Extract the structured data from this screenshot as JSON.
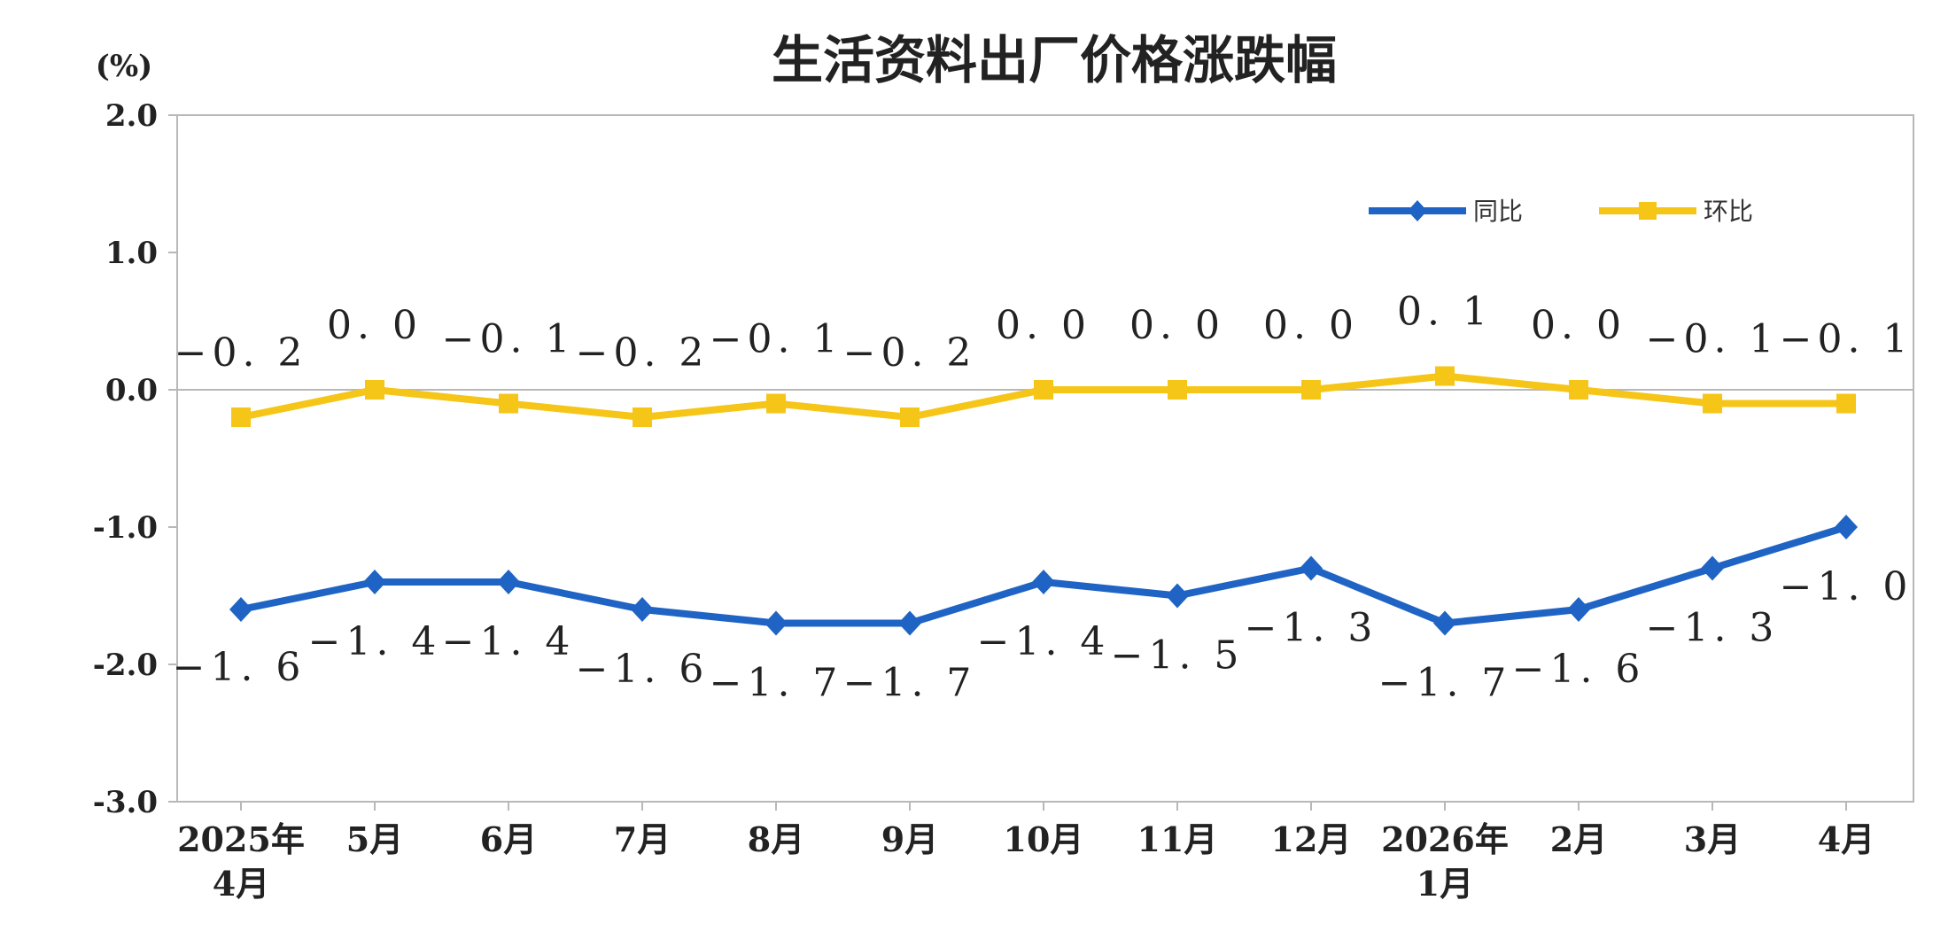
{
  "chart_data": {
    "type": "line",
    "title": "生活资料出厂价格涨跌幅",
    "unit": "(%)",
    "ylim": [
      -3.0,
      2.0
    ],
    "yticks": [
      "2.0",
      "1.0",
      "0.0",
      "-1.0",
      "-2.0",
      "-3.0"
    ],
    "categories": [
      [
        "2025年",
        "4月"
      ],
      [
        "5月"
      ],
      [
        "6月"
      ],
      [
        "7月"
      ],
      [
        "8月"
      ],
      [
        "9月"
      ],
      [
        "10月"
      ],
      [
        "11月"
      ],
      [
        "12月"
      ],
      [
        "2026年",
        "1月"
      ],
      [
        "2月"
      ],
      [
        "3月"
      ],
      [
        "4月"
      ]
    ],
    "series": [
      {
        "name": "同比",
        "color": "#1f64c4",
        "marker": "diamond",
        "values": [
          -1.6,
          -1.4,
          -1.4,
          -1.6,
          -1.7,
          -1.7,
          -1.4,
          -1.5,
          -1.3,
          -1.7,
          -1.6,
          -1.3,
          -1.0
        ],
        "labels": [
          "-1.6",
          "-1.4",
          "-1.4",
          "-1.6",
          "-1.7",
          "-1.7",
          "-1.4",
          "-1.5",
          "-1.3",
          "-1.7",
          "-1.6",
          "-1.3",
          "-1.0"
        ]
      },
      {
        "name": "环比",
        "color": "#f5c518",
        "marker": "square",
        "values": [
          -0.2,
          0.0,
          -0.1,
          -0.2,
          -0.1,
          -0.2,
          0.0,
          0.0,
          0.0,
          0.1,
          0.0,
          -0.1,
          -0.1
        ],
        "labels": [
          "-0.2",
          "0.0",
          "-0.1",
          "-0.2",
          "-0.1",
          "-0.2",
          "0.0",
          "0.0",
          "0.0",
          "0.1",
          "0.0",
          "-0.1",
          "-0.1"
        ]
      }
    ],
    "legend": "top-right",
    "grid": false
  }
}
